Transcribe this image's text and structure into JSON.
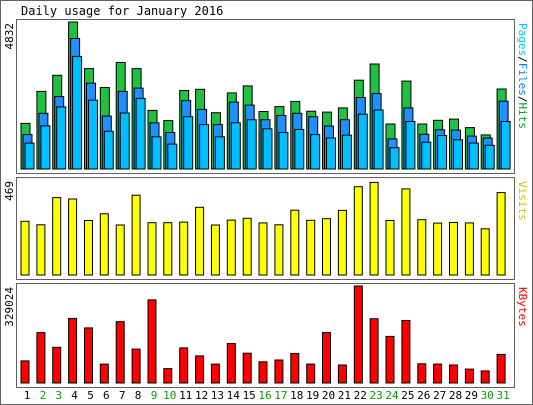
{
  "chart_data": {
    "type": "bar",
    "title": "Daily usage for January 2016",
    "days": [
      "1",
      "2",
      "3",
      "4",
      "5",
      "6",
      "7",
      "8",
      "9",
      "10",
      "11",
      "12",
      "13",
      "14",
      "15",
      "16",
      "17",
      "18",
      "19",
      "20",
      "21",
      "22",
      "23",
      "24",
      "25",
      "26",
      "27",
      "28",
      "29",
      "30",
      "31"
    ],
    "weekend_days": [
      "2",
      "3",
      "9",
      "10",
      "16",
      "17",
      "23",
      "24",
      "30",
      "31"
    ],
    "panels": [
      {
        "id": "top",
        "y_tick_label": "4832",
        "ymax": 4832,
        "legend": [
          "Pages",
          "/",
          "Files",
          "/",
          "Hits"
        ],
        "legend_colors": [
          "#00c8ff",
          "#000000",
          "#0080ff",
          "#000000",
          "#00a020"
        ],
        "series": [
          {
            "name": "Hits",
            "color": "#20c040",
            "values": [
              1500,
              2550,
              3080,
              4832,
              3300,
              2680,
              3500,
              3300,
              1925,
              1590,
              2580,
              2620,
              1850,
              2500,
              2730,
              1890,
              2050,
              2220,
              1900,
              1870,
              2010,
              2920,
              3450,
              1480,
              2890,
              1480,
              1600,
              1640,
              1360,
              1120,
              2630
            ]
          },
          {
            "name": "Files",
            "color": "#1e90ff",
            "values": [
              1130,
              1830,
              2380,
              4290,
              2820,
              1740,
              2550,
              2660,
              1520,
              1200,
              2250,
              1960,
              1460,
              2200,
              2100,
              1620,
              1760,
              1830,
              1720,
              1410,
              1620,
              2350,
              2480,
              990,
              2010,
              1140,
              1290,
              1280,
              1080,
              1020,
              2230
            ]
          },
          {
            "name": "Pages",
            "color": "#00bfff",
            "values": [
              850,
              1420,
              2040,
              3700,
              2260,
              1240,
              1840,
              2320,
              1060,
              820,
              1720,
              1460,
              1060,
              1520,
              1620,
              1320,
              1200,
              1300,
              1130,
              1020,
              1110,
              1800,
              1940,
              700,
              1560,
              880,
              1100,
              960,
              850,
              780,
              1560
            ]
          }
        ]
      },
      {
        "id": "mid",
        "y_tick_label": "469",
        "ymax": 469,
        "legend": [
          "Visits"
        ],
        "legend_colors": [
          "#c8c800"
        ],
        "series": [
          {
            "name": "Visits",
            "color": "#ffff00",
            "values": [
              265,
              248,
              382,
              375,
              269,
              302,
              247,
              394,
              258,
              258,
              261,
              334,
              247,
              271,
              280,
              257,
              248,
              320,
              270,
              278,
              319,
              436,
              457,
              269,
              425,
              273,
              256,
              259,
              257,
              228,
              407
            ]
          }
        ]
      },
      {
        "id": "bot",
        "y_tick_label": "329024",
        "ymax": 329024,
        "legend": [
          "KBytes"
        ],
        "legend_colors": [
          "#ff0000"
        ],
        "series": [
          {
            "name": "KBytes",
            "color": "#ff0000",
            "values": [
              75000,
              171000,
              121000,
              219000,
              187000,
              64000,
              208000,
              115000,
              282000,
              49000,
              119000,
              92000,
              64000,
              134000,
              101000,
              72000,
              78000,
              100000,
              64000,
              171000,
              61000,
              329024,
              218000,
              158000,
              212000,
              65000,
              64000,
              61000,
              47000,
              41000,
              97000
            ]
          }
        ]
      }
    ]
  },
  "colors": {
    "border": "#606060",
    "weekday_label": "#000000",
    "weekend_label": "#00a000"
  }
}
